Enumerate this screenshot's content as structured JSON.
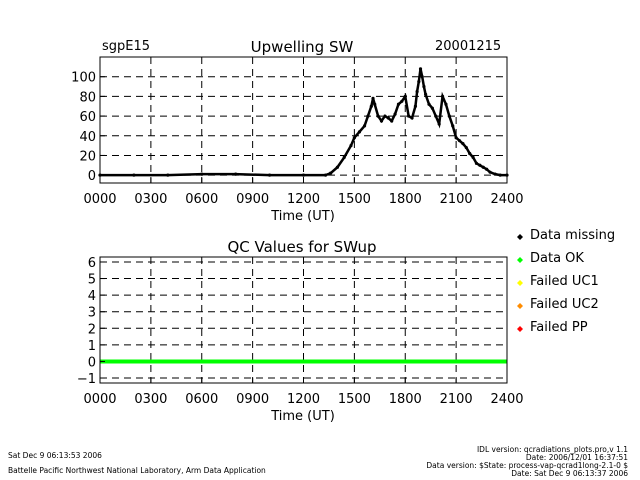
{
  "header": {
    "site": "sgpE15",
    "date": "20001215"
  },
  "legend": [
    {
      "label": "Data missing",
      "color": "#000000"
    },
    {
      "label": "Data OK",
      "color": "#00ff00"
    },
    {
      "label": "Failed UC1",
      "color": "#ffff00"
    },
    {
      "label": "Failed UC2",
      "color": "#ff8c00"
    },
    {
      "label": "Failed PP",
      "color": "#ff0000"
    }
  ],
  "footer": {
    "run_date": "Sat Dec  9 06:13:53 2006",
    "lab": "Battelle Pacific Northwest National Laboratory, Arm Data Application",
    "idl_version": "IDL version: qcradiations_plots.pro,v 1.1",
    "date_line": "Date: 2006/12/01 16:37:51",
    "data_version": "Data version: $State: process-vap-qcrad1long-2.1-0 $",
    "date2": "Date: Sat Dec  9 06:13:37 2006"
  },
  "chart_data": [
    {
      "type": "scatter",
      "title": "Upwelling SW",
      "xlabel": "Time (UT)",
      "ylabel": "",
      "xlim": [
        0,
        2400
      ],
      "ylim": [
        -8,
        120
      ],
      "x_ticks": [
        "0000",
        "0300",
        "0600",
        "0900",
        "1200",
        "1500",
        "1800",
        "2100",
        "2400"
      ],
      "y_ticks": [
        "0",
        "20",
        "40",
        "60",
        "80",
        "100"
      ],
      "y_tick_values": [
        0,
        20,
        40,
        60,
        80,
        100
      ],
      "grid": true,
      "series": [
        {
          "color": "#000000",
          "x": [
            0,
            200,
            400,
            600,
            800,
            1000,
            1200,
            1330,
            1360,
            1400,
            1440,
            1480,
            1500,
            1530,
            1560,
            1580,
            1600,
            1610,
            1620,
            1640,
            1660,
            1680,
            1700,
            1720,
            1740,
            1760,
            1780,
            1800,
            1820,
            1840,
            1860,
            1870,
            1880,
            1890,
            1900,
            1910,
            1920,
            1940,
            1960,
            1980,
            2000,
            2020,
            2040,
            2060,
            2080,
            2100,
            2120,
            2140,
            2160,
            2180,
            2200,
            2220,
            2240,
            2260,
            2280,
            2300,
            2330,
            2360,
            2400
          ],
          "y": [
            0,
            0,
            0,
            1,
            1,
            0,
            0,
            0,
            2,
            8,
            18,
            30,
            38,
            44,
            50,
            60,
            70,
            78,
            72,
            60,
            55,
            60,
            58,
            55,
            62,
            72,
            75,
            80,
            60,
            58,
            70,
            85,
            95,
            108,
            100,
            90,
            82,
            72,
            68,
            60,
            52,
            80,
            72,
            60,
            50,
            38,
            35,
            32,
            28,
            22,
            18,
            12,
            10,
            8,
            6,
            3,
            1,
            0,
            0
          ]
        }
      ]
    },
    {
      "type": "scatter",
      "title": "QC Values for SWup",
      "xlabel": "Time (UT)",
      "ylabel": "",
      "xlim": [
        0,
        2400
      ],
      "ylim": [
        -1.3,
        6.3
      ],
      "x_ticks": [
        "0000",
        "0300",
        "0600",
        "0900",
        "1200",
        "1500",
        "1800",
        "2100",
        "2400"
      ],
      "y_ticks": [
        "−1",
        "0",
        "1",
        "2",
        "3",
        "4",
        "5",
        "6"
      ],
      "y_tick_values": [
        -1,
        0,
        1,
        2,
        3,
        4,
        5,
        6
      ],
      "grid": true,
      "series": [
        {
          "color": "#00ff00",
          "x": [
            0,
            2400
          ],
          "y": [
            0,
            0
          ]
        }
      ]
    }
  ]
}
